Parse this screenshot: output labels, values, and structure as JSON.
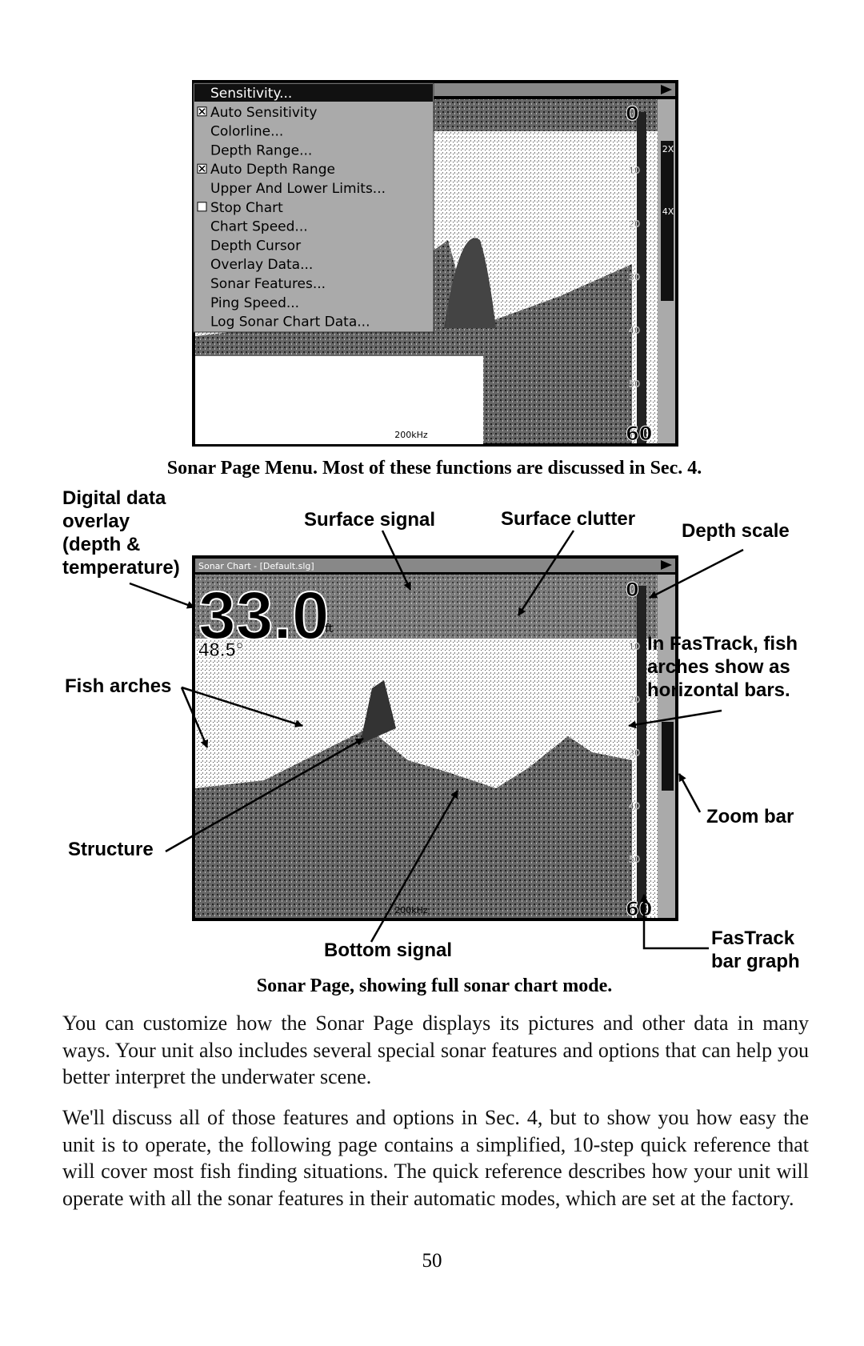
{
  "figure1": {
    "menu": [
      {
        "label": "Sensitivity..."
      },
      {
        "label": "Auto Sensitivity",
        "checkbox": "checked"
      },
      {
        "label": "Colorline..."
      },
      {
        "label": "Depth Range..."
      },
      {
        "label": "Auto Depth Range",
        "checkbox": "checked"
      },
      {
        "label": "Upper And Lower Limits..."
      },
      {
        "label": "Stop Chart",
        "checkbox": "unchecked"
      },
      {
        "label": "Chart Speed..."
      },
      {
        "label": "Depth Cursor"
      },
      {
        "label": "Overlay Data..."
      },
      {
        "label": "Sonar Features..."
      },
      {
        "label": "Ping Speed..."
      },
      {
        "label": "Log Sonar Chart Data..."
      }
    ],
    "depth_scale": [
      "0",
      "10",
      "20",
      "30",
      "40",
      "50",
      "60"
    ],
    "zoom_labels": [
      "2X",
      "4X"
    ],
    "frequency": "200kHz",
    "caption": "Sonar Page Menu. Most of these functions are discussed in Sec. 4."
  },
  "figure2": {
    "title_bar": "Sonar Chart - [Default.slg]",
    "depth": "33.0",
    "depth_unit": "ft",
    "temperature": "48.5°",
    "depth_scale": [
      "0",
      "10",
      "20",
      "30",
      "40",
      "50",
      "60"
    ],
    "frequency": "200kHz",
    "annotations": {
      "overlay": [
        "Digital data",
        "overlay",
        "(depth &",
        "temperature)"
      ],
      "surface_signal": "Surface signal",
      "surface_clutter": "Surface clutter",
      "depth_scale": "Depth scale",
      "fastrack_fish": [
        "In FasTrack, fish",
        "arches show as",
        "horizontal bars."
      ],
      "fish_arches": "Fish arches",
      "zoom_bar": "Zoom bar",
      "structure": "Structure",
      "bottom_signal": "Bottom signal",
      "fastrack_bar": [
        "FasTrack",
        "bar graph"
      ]
    },
    "caption": "Sonar Page, showing full sonar chart mode."
  },
  "body": {
    "paragraphs": [
      "You can customize how the Sonar Page displays its pictures and other data in many ways. Your unit also includes several special sonar features and options that can help you better interpret the underwater scene.",
      "We'll discuss all of those features and options in Sec. 4, but to show you how easy the unit is to operate, the following page contains a simplified, 10-step quick reference that will cover most fish finding situations. The quick reference describes how your unit will operate with all the sonar features in their automatic modes, which are set at the factory."
    ],
    "page_number": "50"
  }
}
